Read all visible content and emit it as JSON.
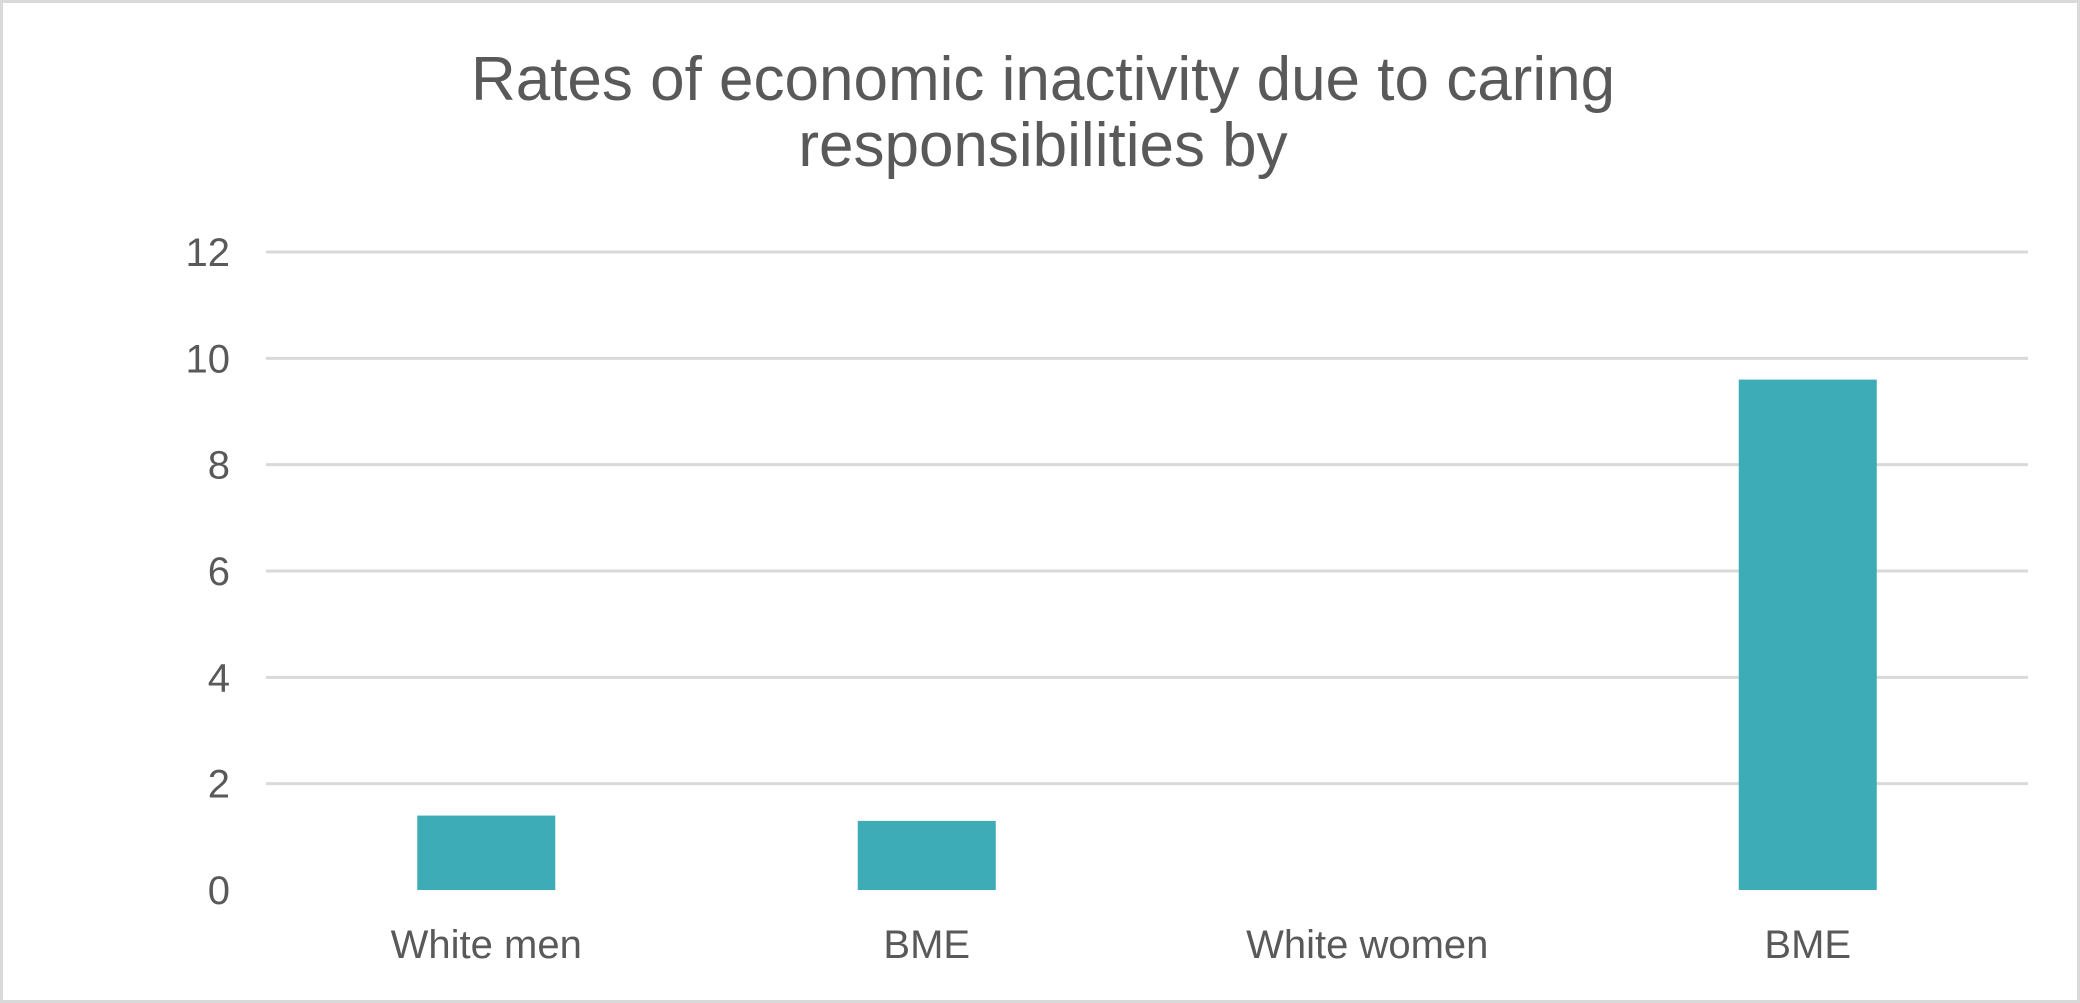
{
  "chart_data": {
    "type": "bar",
    "title_lines": [
      "Rates of economic inactivity due to caring",
      "responsibilities by"
    ],
    "categories": [
      "White men",
      "BME",
      "White women",
      "BME"
    ],
    "values": [
      1.4,
      1.3,
      0,
      9.6
    ],
    "ylim": [
      0,
      12
    ],
    "yticks": [
      0,
      2,
      4,
      6,
      8,
      10,
      12
    ],
    "grid": true,
    "legend": "none",
    "xlabel": "",
    "ylabel": "",
    "bar_color": "#3eacb6",
    "gridline_color": "#d9d9d9",
    "text_color": "#595959"
  }
}
